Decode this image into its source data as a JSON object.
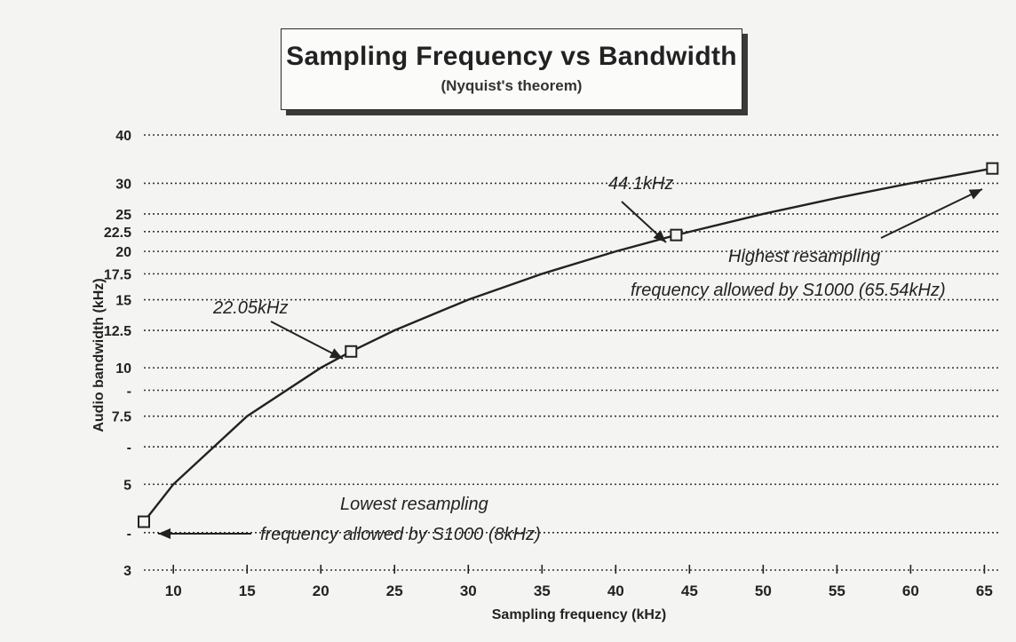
{
  "chart_data": {
    "type": "line",
    "title": "Sampling Frequency vs Bandwidth",
    "subtitle": "(Nyquist's theorem)",
    "xlabel": "Sampling frequency (kHz)",
    "ylabel": "Audio bandwidth (kHz)",
    "y_scale": "log",
    "xlim": [
      8,
      66
    ],
    "ylim": [
      3,
      40
    ],
    "x_ticks": [
      10,
      15,
      20,
      25,
      30,
      35,
      40,
      45,
      50,
      55,
      60,
      65
    ],
    "y_ticks": [
      {
        "value": 40,
        "label": "40"
      },
      {
        "value": 30,
        "label": "30"
      },
      {
        "value": 25,
        "label": "25"
      },
      {
        "value": 22.5,
        "label": "22.5"
      },
      {
        "value": 20,
        "label": "20"
      },
      {
        "value": 17.5,
        "label": "17.5"
      },
      {
        "value": 15,
        "label": "15"
      },
      {
        "value": 12.5,
        "label": "12.5"
      },
      {
        "value": 10,
        "label": "10"
      },
      {
        "value": 8.75,
        "label": "-"
      },
      {
        "value": 7.5,
        "label": "7.5"
      },
      {
        "value": 6.25,
        "label": "-"
      },
      {
        "value": 5,
        "label": "5"
      },
      {
        "value": 3.75,
        "label": "-"
      },
      {
        "value": 3,
        "label": "3"
      }
    ],
    "grid": true,
    "series": [
      {
        "x": [
          8,
          10,
          15,
          20,
          22.05,
          25,
          30,
          35,
          40,
          44.1,
          50,
          55,
          60,
          65.54
        ],
        "values": [
          4,
          5,
          7.5,
          10,
          11.025,
          12.5,
          15,
          17.5,
          20,
          22.05,
          25,
          27.5,
          30,
          32.77
        ]
      }
    ],
    "markers": [
      {
        "x": 8,
        "y": 4
      },
      {
        "x": 22.05,
        "y": 11.025
      },
      {
        "x": 44.1,
        "y": 22.05
      },
      {
        "x": 65.54,
        "y": 32.77
      }
    ],
    "annotations": [
      {
        "lines": [
          "22.05kHz"
        ]
      },
      {
        "lines": [
          "44.1kHz"
        ]
      },
      {
        "lines": [
          "Highest resampling",
          "frequency allowed by S1000 (65.54kHz)"
        ]
      },
      {
        "lines": [
          "Lowest resampling",
          "frequency allowed by S1000 (8kHz)"
        ]
      }
    ]
  }
}
